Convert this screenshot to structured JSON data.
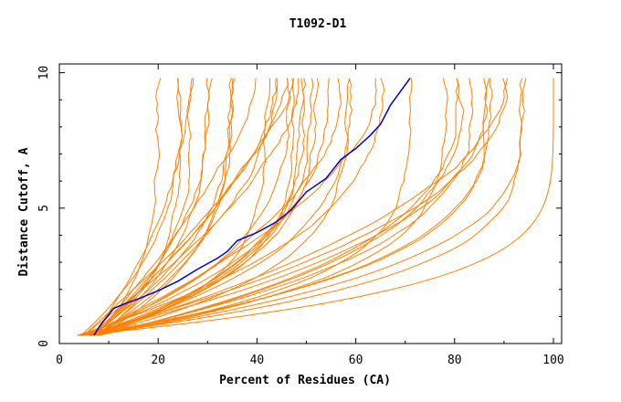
{
  "chart_data": {
    "type": "line",
    "title": "T1092-D1",
    "xlabel": "Percent of Residues (CA)",
    "ylabel": "Distance Cutoff, A",
    "xlim": [
      0,
      100
    ],
    "ylim": [
      0,
      10
    ],
    "x_ticks": [
      "0",
      "20",
      "40",
      "60",
      "80",
      "100"
    ],
    "y_ticks": [
      "0",
      "5",
      "10"
    ],
    "colors": {
      "highlight": "#0000cc",
      "models": "#ff8000",
      "axes": "#000000"
    },
    "highlight_series": {
      "name": "highlighted model",
      "points": [
        [
          7,
          0.3
        ],
        [
          8,
          0.6
        ],
        [
          9.5,
          0.95
        ],
        [
          11,
          1.3
        ],
        [
          13,
          1.45
        ],
        [
          16,
          1.65
        ],
        [
          20,
          1.95
        ],
        [
          24,
          2.3
        ],
        [
          28,
          2.75
        ],
        [
          32,
          3.15
        ],
        [
          34,
          3.4
        ],
        [
          36,
          3.8
        ],
        [
          40,
          4.1
        ],
        [
          44,
          4.5
        ],
        [
          47,
          4.95
        ],
        [
          50,
          5.6
        ],
        [
          54,
          6.1
        ],
        [
          57,
          6.8
        ],
        [
          60,
          7.2
        ],
        [
          63,
          7.7
        ],
        [
          65,
          8.1
        ],
        [
          67,
          8.8
        ],
        [
          69,
          9.3
        ],
        [
          71,
          9.8
        ]
      ]
    },
    "model_series_count": 42,
    "model_series_note": "orange curves: one per predicted model; each rises from ~0.3 A at low coverage to ~9.8 A at its maximum coverage"
  }
}
